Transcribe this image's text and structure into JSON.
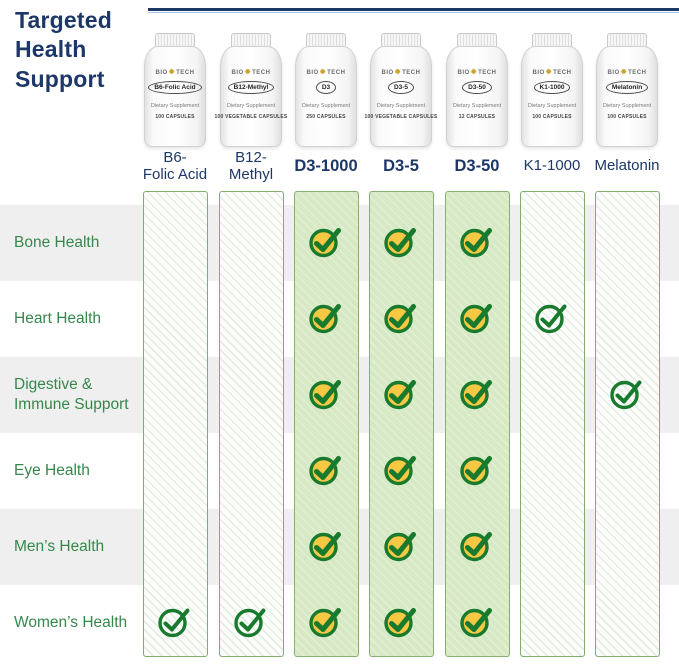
{
  "title": "Targeted\nHealth\nSupport",
  "brand": {
    "left": "BIO",
    "right": "TECH"
  },
  "table": {
    "columns": [
      {
        "key": "b6-folic-acid",
        "header": "B6-\nFolic Acid",
        "emphasis": false,
        "band_style": "hatched",
        "bottle": {
          "name": "B6-Folic Acid",
          "type_line": "Dietary Supplement",
          "count_line": "100 CAPSULES"
        }
      },
      {
        "key": "b12-methyl",
        "header": "B12-\nMethyl",
        "emphasis": false,
        "band_style": "hatched",
        "bottle": {
          "name": "B12-Methyl",
          "type_line": "Dietary Supplement",
          "count_line": "100 VEGETABLE CAPSULES"
        }
      },
      {
        "key": "d3-1000",
        "header": "D3-1000",
        "emphasis": true,
        "band_style": "filled",
        "bottle": {
          "name": "D3",
          "type_line": "Dietary Supplement",
          "count_line": "250 CAPSULES"
        }
      },
      {
        "key": "d3-5",
        "header": "D3-5",
        "emphasis": true,
        "band_style": "filled",
        "bottle": {
          "name": "D3-5",
          "type_line": "Dietary Supplement",
          "count_line": "100 VEGETABLE CAPSULES"
        }
      },
      {
        "key": "d3-50",
        "header": "D3-50",
        "emphasis": true,
        "band_style": "filled",
        "bottle": {
          "name": "D3-50",
          "type_line": "Dietary Supplement",
          "count_line": "12 CAPSULES"
        }
      },
      {
        "key": "k1-1000",
        "header": "K1-1000",
        "emphasis": false,
        "band_style": "hatched",
        "bottle": {
          "name": "K1-1000",
          "type_line": "Dietary Supplement",
          "count_line": "100 CAPSULES"
        }
      },
      {
        "key": "melatonin",
        "header": "Melatonin",
        "emphasis": false,
        "band_style": "hatched",
        "bottle": {
          "name": "Melatonin",
          "type_line": "Dietary Supplement",
          "count_line": "100 CAPSULES"
        }
      }
    ],
    "rows": [
      {
        "label": "Bone Health"
      },
      {
        "label": "Heart Health"
      },
      {
        "label": "Digestive &\nImmune Support"
      },
      {
        "label": "Eye Health"
      },
      {
        "label": "Men’s Health"
      },
      {
        "label": "Women’s Health"
      }
    ],
    "checks": [
      [
        "",
        "",
        "filled",
        "filled",
        "filled",
        "",
        ""
      ],
      [
        "",
        "",
        "filled",
        "filled",
        "filled",
        "outline",
        ""
      ],
      [
        "",
        "",
        "filled",
        "filled",
        "filled",
        "",
        "outline"
      ],
      [
        "",
        "",
        "filled",
        "filled",
        "filled",
        "",
        ""
      ],
      [
        "",
        "",
        "filled",
        "filled",
        "filled",
        "",
        ""
      ],
      [
        "outline",
        "outline",
        "filled",
        "filled",
        "filled",
        "",
        ""
      ]
    ]
  },
  "colors": {
    "navy": "#1d3768",
    "green_text": "#35874a",
    "check_green": "#177a2d",
    "check_gold": "#f6c844",
    "band_fill": "#d7e9c4",
    "band_border": "#7fae6a",
    "row_stripe": "#efefef"
  }
}
